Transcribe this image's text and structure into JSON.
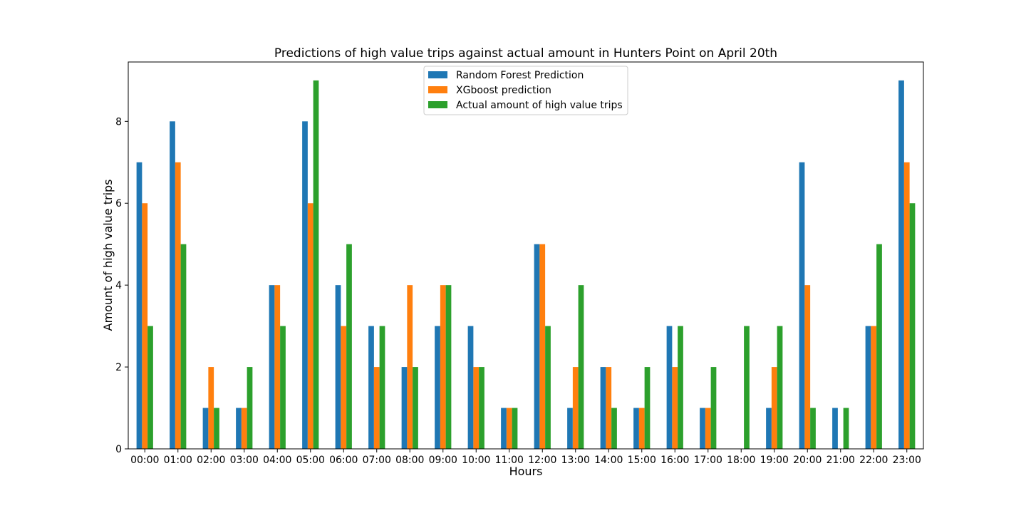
{
  "chart_data": {
    "type": "bar",
    "title": "Predictions of high value trips against actual amount in Hunters Point on April 20th",
    "xlabel": "Hours",
    "ylabel": "Amount of high value trips",
    "ylim": [
      0,
      9.45
    ],
    "yticks": [
      0,
      2,
      4,
      6,
      8
    ],
    "grid": false,
    "legend_position": "upper center",
    "categories": [
      "00:00",
      "01:00",
      "02:00",
      "03:00",
      "04:00",
      "05:00",
      "06:00",
      "07:00",
      "08:00",
      "09:00",
      "10:00",
      "11:00",
      "12:00",
      "13:00",
      "14:00",
      "15:00",
      "16:00",
      "17:00",
      "18:00",
      "19:00",
      "20:00",
      "21:00",
      "22:00",
      "23:00"
    ],
    "series": [
      {
        "name": "Random Forest Prediction",
        "color": "#1f77b4",
        "values": [
          7,
          8,
          1,
          1,
          4,
          8,
          4,
          3,
          2,
          3,
          3,
          1,
          5,
          1,
          2,
          1,
          3,
          1,
          0,
          1,
          7,
          1,
          3,
          9
        ]
      },
      {
        "name": "XGboost prediction",
        "color": "#ff7f0e",
        "values": [
          6,
          7,
          2,
          1,
          4,
          6,
          3,
          2,
          4,
          4,
          2,
          1,
          5,
          2,
          2,
          1,
          2,
          1,
          0,
          2,
          4,
          0,
          3,
          7
        ]
      },
      {
        "name": "Actual amount of high value trips",
        "color": "#2ca02c",
        "values": [
          3,
          5,
          1,
          2,
          3,
          9,
          5,
          3,
          2,
          4,
          2,
          1,
          3,
          4,
          1,
          2,
          3,
          2,
          3,
          3,
          1,
          1,
          5,
          6
        ]
      }
    ]
  }
}
